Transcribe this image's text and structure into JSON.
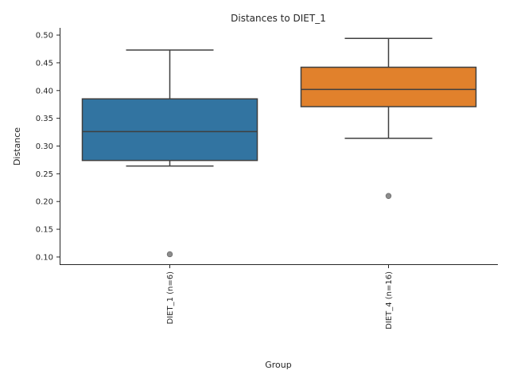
{
  "chart_data": {
    "type": "box",
    "title": "Distances to DIET_1",
    "xlabel": "Group",
    "ylabel": "Distance",
    "ylim": [
      0.087,
      0.513
    ],
    "yticks": [
      "0.10",
      "0.15",
      "0.20",
      "0.25",
      "0.30",
      "0.35",
      "0.40",
      "0.45",
      "0.50"
    ],
    "grid": false,
    "categories": [
      "DIET_1 (n=6)",
      "DIET_4 (n=16)"
    ],
    "boxes": [
      {
        "name": "DIET_1 (n=6)",
        "whisker_low": 0.264,
        "q1": 0.274,
        "median": 0.326,
        "q3": 0.385,
        "whisker_high": 0.473,
        "outliers": [
          0.105
        ],
        "color": "#3274a1"
      },
      {
        "name": "DIET_4 (n=16)",
        "whisker_low": 0.314,
        "q1": 0.371,
        "median": 0.402,
        "q3": 0.442,
        "whisker_high": 0.494,
        "outliers": [
          0.21
        ],
        "color": "#e1812c"
      }
    ]
  }
}
